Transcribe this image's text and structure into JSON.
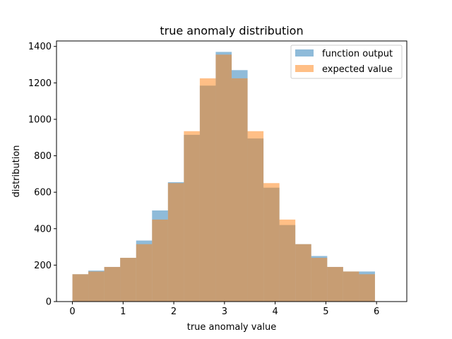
{
  "chart_data": {
    "type": "bar",
    "title": "true anomaly distribution",
    "xlabel": "true anomaly value",
    "ylabel": "distribution",
    "xlim": [
      -0.314,
      6.597
    ],
    "ylim": [
      0,
      1430
    ],
    "xticks": [
      0,
      1,
      2,
      3,
      4,
      5,
      6
    ],
    "yticks": [
      0,
      200,
      400,
      600,
      800,
      1000,
      1200,
      1400
    ],
    "bin_edges": [
      0,
      0.314,
      0.628,
      0.942,
      1.257,
      1.571,
      1.885,
      2.199,
      2.513,
      2.827,
      3.142,
      3.456,
      3.77,
      4.084,
      4.398,
      4.712,
      5.027,
      5.341,
      5.655,
      5.969,
      6.283
    ],
    "series": [
      {
        "name": "function output",
        "color": "#1f77b4",
        "alpha": 0.5,
        "values": [
          150,
          170,
          190,
          240,
          335,
          500,
          655,
          915,
          1185,
          1370,
          1270,
          895,
          625,
          420,
          315,
          250,
          190,
          165,
          165,
          0
        ]
      },
      {
        "name": "expected value",
        "color": "#ff7f0e",
        "alpha": 0.5,
        "values": [
          150,
          165,
          190,
          240,
          315,
          450,
          650,
          935,
          1225,
          1355,
          1225,
          935,
          650,
          450,
          315,
          240,
          190,
          165,
          150,
          0
        ]
      }
    ],
    "legend_position": "upper right",
    "grid": false
  }
}
